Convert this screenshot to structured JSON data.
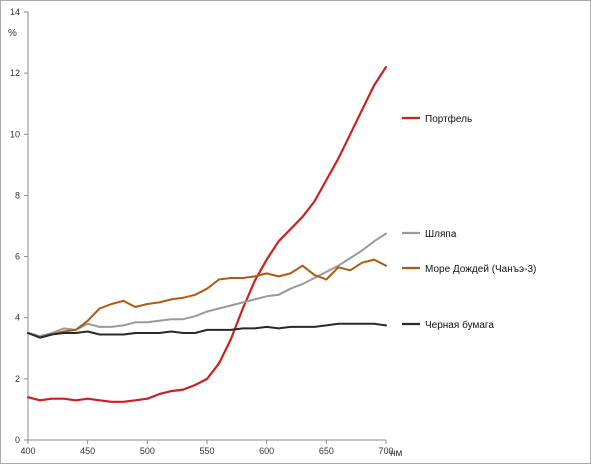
{
  "chart_data": {
    "type": "line",
    "title": "",
    "xlabel": "нм",
    "ylabel": "%",
    "xlim": [
      400,
      700
    ],
    "ylim": [
      0,
      14
    ],
    "x_ticks": [
      400,
      450,
      500,
      550,
      600,
      650,
      700
    ],
    "y_ticks": [
      0,
      2,
      4,
      6,
      8,
      10,
      12,
      14
    ],
    "grid": false,
    "legend_position": "right",
    "series": [
      {
        "name": "Портфель",
        "color": "#cc2020",
        "x": [
          400,
          410,
          420,
          430,
          440,
          450,
          460,
          470,
          480,
          490,
          500,
          510,
          520,
          530,
          540,
          550,
          560,
          570,
          580,
          590,
          600,
          610,
          620,
          630,
          640,
          650,
          660,
          670,
          680,
          690,
          700
        ],
        "y": [
          1.4,
          1.3,
          1.35,
          1.35,
          1.3,
          1.35,
          1.3,
          1.25,
          1.25,
          1.3,
          1.35,
          1.5,
          1.6,
          1.65,
          1.8,
          2.0,
          2.5,
          3.3,
          4.3,
          5.2,
          5.9,
          6.5,
          6.9,
          7.3,
          7.8,
          8.5,
          9.2,
          10.0,
          10.8,
          11.6,
          12.2
        ]
      },
      {
        "name": "Шляпа",
        "color": "#9a9a9a",
        "x": [
          400,
          410,
          420,
          430,
          440,
          450,
          460,
          470,
          480,
          490,
          500,
          510,
          520,
          530,
          540,
          550,
          560,
          570,
          580,
          590,
          600,
          610,
          620,
          630,
          640,
          650,
          660,
          670,
          680,
          690,
          700
        ],
        "y": [
          3.5,
          3.4,
          3.5,
          3.65,
          3.6,
          3.8,
          3.7,
          3.7,
          3.75,
          3.85,
          3.85,
          3.9,
          3.95,
          3.95,
          4.05,
          4.2,
          4.3,
          4.4,
          4.5,
          4.6,
          4.7,
          4.75,
          4.95,
          5.1,
          5.3,
          5.5,
          5.7,
          5.95,
          6.2,
          6.5,
          6.75
        ]
      },
      {
        "name": "Море Дождей (Чанъэ-3)",
        "color": "#b05a10",
        "x": [
          400,
          410,
          420,
          430,
          440,
          450,
          460,
          470,
          480,
          490,
          500,
          510,
          520,
          530,
          540,
          550,
          560,
          570,
          580,
          590,
          600,
          610,
          620,
          630,
          640,
          650,
          660,
          670,
          680,
          690,
          700
        ],
        "y": [
          3.5,
          3.35,
          3.45,
          3.55,
          3.6,
          3.9,
          4.3,
          4.45,
          4.55,
          4.35,
          4.45,
          4.5,
          4.6,
          4.65,
          4.75,
          4.95,
          5.25,
          5.3,
          5.3,
          5.35,
          5.45,
          5.35,
          5.45,
          5.7,
          5.4,
          5.25,
          5.65,
          5.55,
          5.8,
          5.9,
          5.7
        ]
      },
      {
        "name": "Черная бумага",
        "color": "#2a2a2a",
        "x": [
          400,
          410,
          420,
          430,
          440,
          450,
          460,
          470,
          480,
          490,
          500,
          510,
          520,
          530,
          540,
          550,
          560,
          570,
          580,
          590,
          600,
          610,
          620,
          630,
          640,
          650,
          660,
          670,
          680,
          690,
          700
        ],
        "y": [
          3.5,
          3.35,
          3.45,
          3.5,
          3.5,
          3.55,
          3.45,
          3.45,
          3.45,
          3.5,
          3.5,
          3.5,
          3.55,
          3.5,
          3.5,
          3.6,
          3.6,
          3.6,
          3.65,
          3.65,
          3.7,
          3.65,
          3.7,
          3.7,
          3.7,
          3.75,
          3.8,
          3.8,
          3.8,
          3.8,
          3.75
        ]
      }
    ]
  }
}
